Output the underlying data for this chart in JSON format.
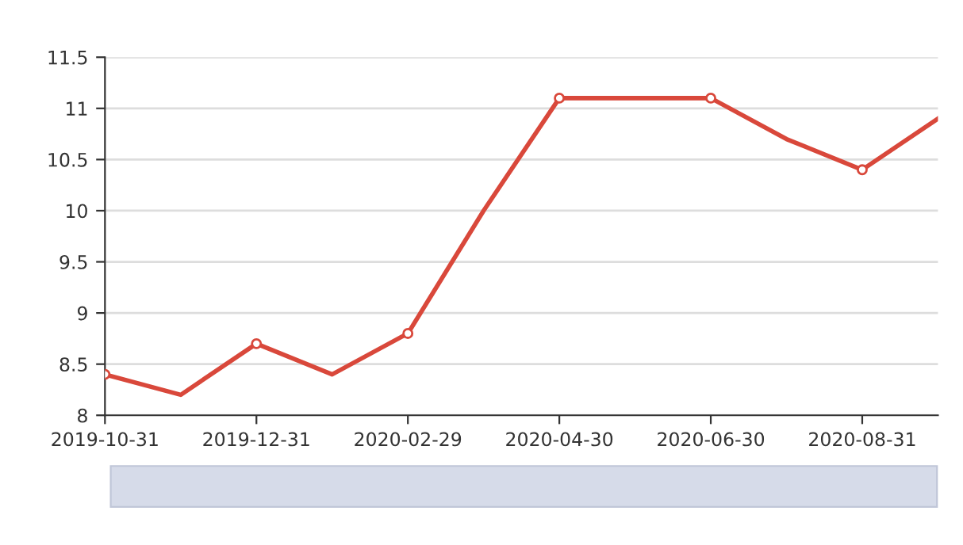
{
  "chart_data": {
    "type": "line",
    "categories": [
      "2019-10-31",
      null,
      "2019-12-31",
      null,
      "2020-02-29",
      null,
      "2020-04-30",
      null,
      "2020-06-30",
      null,
      "2020-08-31",
      null
    ],
    "series": [
      {
        "color": "#d9483b",
        "values": [
          8.4,
          8.2,
          8.7,
          8.4,
          8.8,
          10.0,
          11.1,
          11.1,
          11.1,
          10.7,
          10.4,
          10.9
        ]
      }
    ],
    "ylim": [
      8,
      11.5
    ],
    "yticks": [
      8,
      8.5,
      9,
      9.5,
      10,
      10.5,
      11,
      11.5
    ],
    "grid": "y",
    "marker": "circle",
    "line_style": "solid"
  }
}
